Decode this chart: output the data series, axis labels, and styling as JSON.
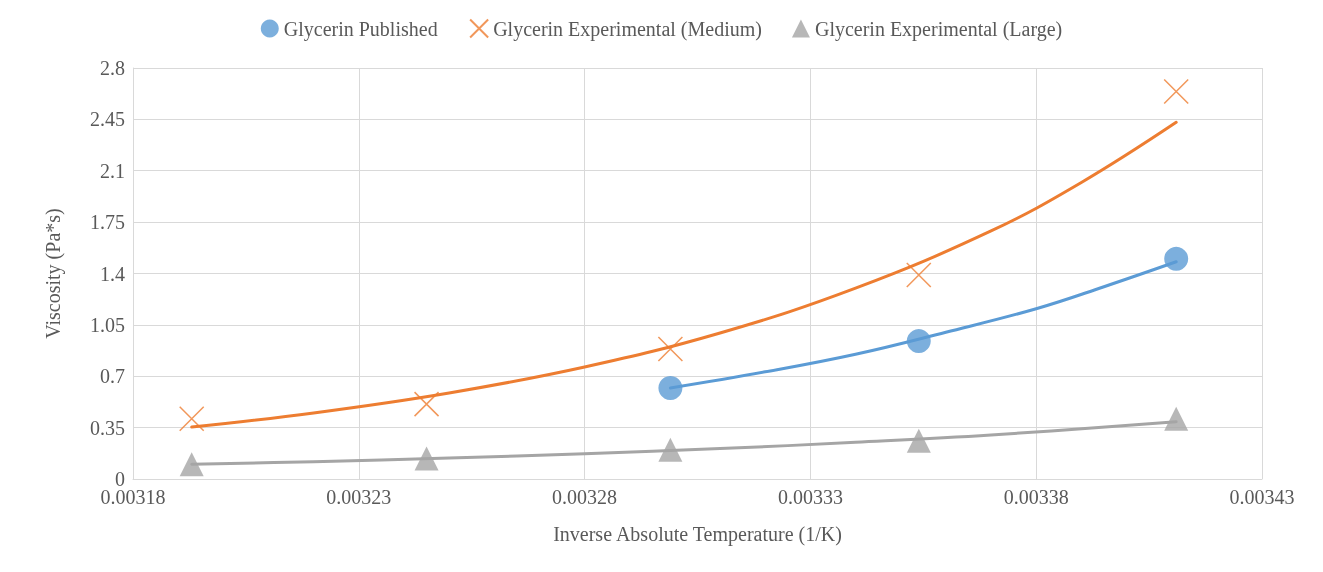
{
  "chart_data": {
    "type": "scatter",
    "xlabel": "Inverse Absolute Temperature (1/K)",
    "ylabel": "Viscosity (Pa*s)",
    "xlim": [
      0.00318,
      0.00343
    ],
    "xticks": [
      0.00318,
      0.00323,
      0.00328,
      0.00333,
      0.00338,
      0.00343
    ],
    "ylim": [
      0,
      2.8
    ],
    "yticks": [
      0,
      0.35,
      0.7,
      1.05,
      1.4,
      1.75,
      2.1,
      2.45,
      2.8
    ],
    "grid": true,
    "legend": "top",
    "series": [
      {
        "name": "Glycerin Published",
        "marker": "circle",
        "color": "#5b9bd5",
        "x": [
          0.003299,
          0.003354,
          0.003411
        ],
        "values": [
          0.62,
          0.94,
          1.5
        ]
      },
      {
        "name": "Glycerin Experimental (Medium)",
        "marker": "cross",
        "color": "#ed7d31",
        "x": [
          0.003193,
          0.003245,
          0.003299,
          0.003354,
          0.003411
        ],
        "values": [
          0.41,
          0.51,
          0.885,
          1.39,
          2.64
        ]
      },
      {
        "name": "Glycerin Experimental (Large)",
        "marker": "triangle",
        "color": "#a5a5a5",
        "x": [
          0.003193,
          0.003245,
          0.003299,
          0.003354,
          0.003411
        ],
        "values": [
          0.1,
          0.14,
          0.2,
          0.26,
          0.41
        ]
      },
      {
        "type": "line",
        "marker": "none",
        "color": "#5b9bd5",
        "x": [
          0.003299,
          0.00332,
          0.00334,
          0.00336,
          0.00338,
          0.003395,
          0.003411
        ],
        "values": [
          0.62,
          0.73,
          0.85,
          1.0,
          1.16,
          1.31,
          1.48
        ]
      },
      {
        "type": "line",
        "marker": "none",
        "color": "#ed7d31",
        "x": [
          0.003193,
          0.00322,
          0.00325,
          0.00328,
          0.00331,
          0.00334,
          0.00337,
          0.00339,
          0.003411
        ],
        "values": [
          0.354,
          0.45,
          0.586,
          0.763,
          0.995,
          1.3,
          1.69,
          2.02,
          2.43
        ]
      },
      {
        "type": "line",
        "marker": "none",
        "color": "#a5a5a5",
        "x": [
          0.003193,
          0.00322,
          0.00325,
          0.00328,
          0.00331,
          0.00334,
          0.00337,
          0.003411
        ],
        "values": [
          0.1,
          0.118,
          0.143,
          0.172,
          0.207,
          0.25,
          0.3,
          0.39
        ]
      }
    ]
  }
}
